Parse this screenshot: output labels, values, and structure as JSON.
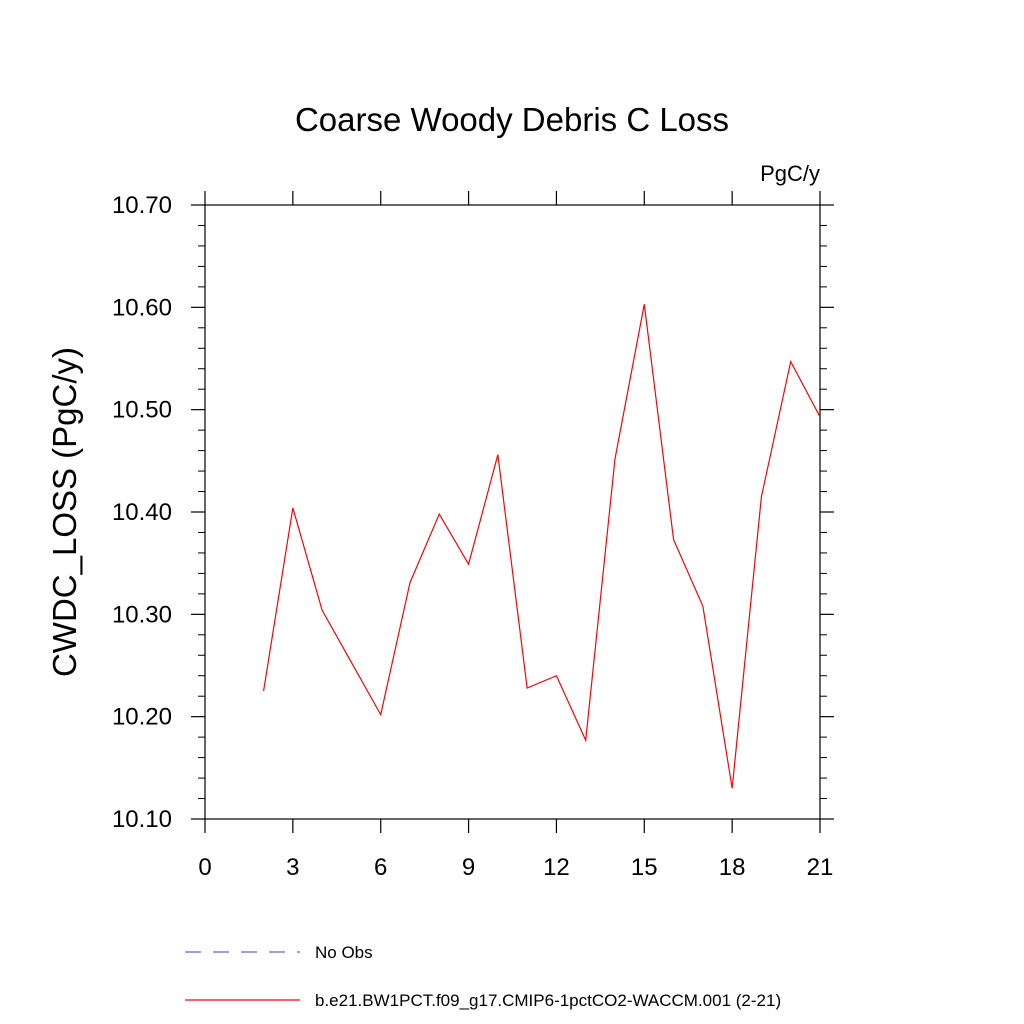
{
  "chart_data": {
    "type": "line",
    "title": "Coarse Woody Debris C Loss",
    "units": "PgC/y",
    "ylabel": "CWDC_LOSS  (PgC/y)",
    "xlabel": "",
    "xlim": [
      0,
      21
    ],
    "ylim": [
      10.1,
      10.7
    ],
    "x_ticks": [
      0,
      3,
      6,
      9,
      12,
      15,
      18,
      21
    ],
    "x_tick_labels": [
      "0",
      "3",
      "6",
      "9",
      "12",
      "15",
      "18",
      "21"
    ],
    "y_ticks": [
      10.1,
      10.2,
      10.3,
      10.4,
      10.5,
      10.6,
      10.7
    ],
    "y_tick_labels": [
      "10.10",
      "10.20",
      "10.30",
      "10.40",
      "10.50",
      "10.60",
      "10.70"
    ],
    "grid": false,
    "legend_position": "bottom",
    "series": [
      {
        "name": "b.e21.BW1PCT.f09_g17.CMIP6-1pctCO2-WACCM.001 (2-21)",
        "color": "#ff0000",
        "dash": "solid",
        "x": [
          2,
          3,
          4,
          5,
          6,
          7,
          8,
          9,
          10,
          11,
          12,
          13,
          14,
          15,
          16,
          17,
          18,
          19,
          20,
          21
        ],
        "y": [
          10.225,
          10.404,
          10.304,
          10.253,
          10.202,
          10.331,
          10.398,
          10.349,
          10.456,
          10.228,
          10.24,
          10.177,
          10.452,
          10.603,
          10.373,
          10.308,
          10.13,
          10.415,
          10.547,
          10.493
        ]
      }
    ],
    "legend": [
      {
        "label": "No Obs",
        "color": "#6666cc",
        "dash": "dashed"
      },
      {
        "label": "b.e21.BW1PCT.f09_g17.CMIP6-1pctCO2-WACCM.001 (2-21)",
        "color": "#ff0000",
        "dash": "solid"
      }
    ]
  }
}
